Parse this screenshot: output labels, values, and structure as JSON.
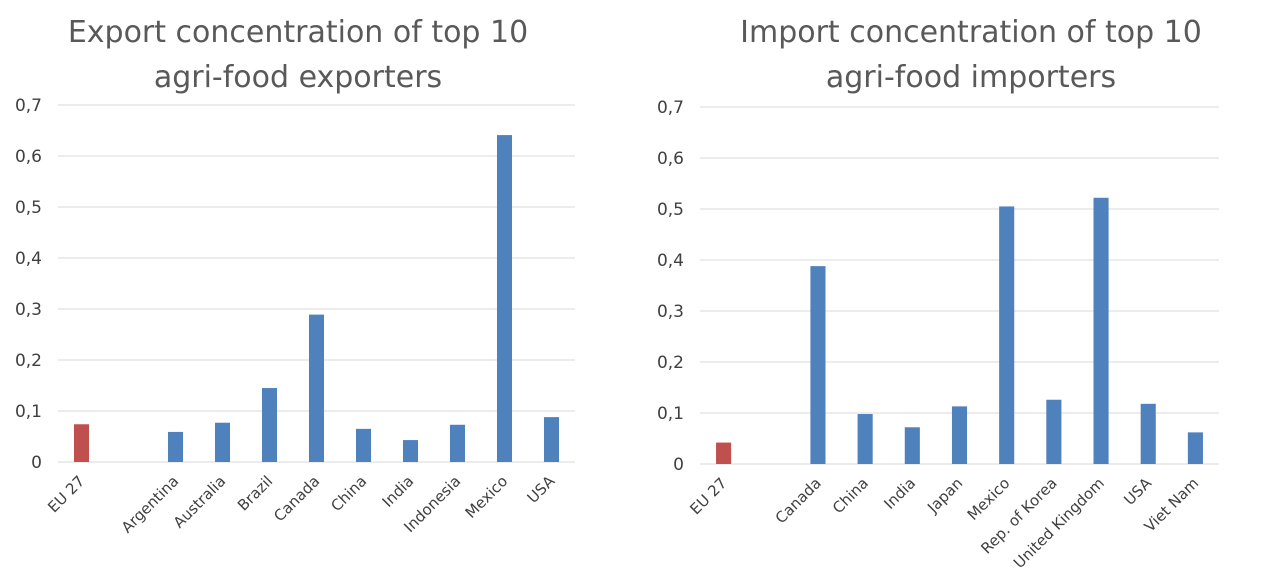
{
  "chart_data": [
    {
      "type": "bar",
      "title_lines": [
        "Export concentration of top 10",
        "agri-food exporters"
      ],
      "categories": [
        "EU 27",
        "",
        "Argentina",
        "Australia",
        "Brazil",
        "Canada",
        "China",
        "India",
        "Indonesia",
        "Mexico",
        "USA"
      ],
      "values": [
        0.074,
        null,
        0.059,
        0.077,
        0.145,
        0.289,
        0.065,
        0.043,
        0.073,
        0.641,
        0.088
      ],
      "highlight_index": 0,
      "ylim": [
        0,
        0.7
      ],
      "yticks": [
        "0",
        "0,1",
        "0,2",
        "0,3",
        "0,4",
        "0,5",
        "0,6",
        "0,7"
      ],
      "grid": true,
      "colors": {
        "highlight": "#c0504d",
        "bar": "#4f81bd"
      }
    },
    {
      "type": "bar",
      "title_lines": [
        "Import concentration of top 10",
        "agri-food importers"
      ],
      "categories": [
        "EU 27",
        "",
        "Canada",
        "China",
        "India",
        "Japan",
        "Mexico",
        "Rep. of Korea",
        "United Kingdom",
        "USA",
        "Viet Nam"
      ],
      "values": [
        0.042,
        null,
        0.388,
        0.098,
        0.072,
        0.113,
        0.505,
        0.126,
        0.522,
        0.118,
        0.062
      ],
      "highlight_index": 0,
      "ylim": [
        0,
        0.7
      ],
      "yticks": [
        "0",
        "0,1",
        "0,2",
        "0,3",
        "0,4",
        "0,5",
        "0,6",
        "0,7"
      ],
      "grid": true,
      "colors": {
        "highlight": "#c0504d",
        "bar": "#4f81bd"
      }
    }
  ]
}
